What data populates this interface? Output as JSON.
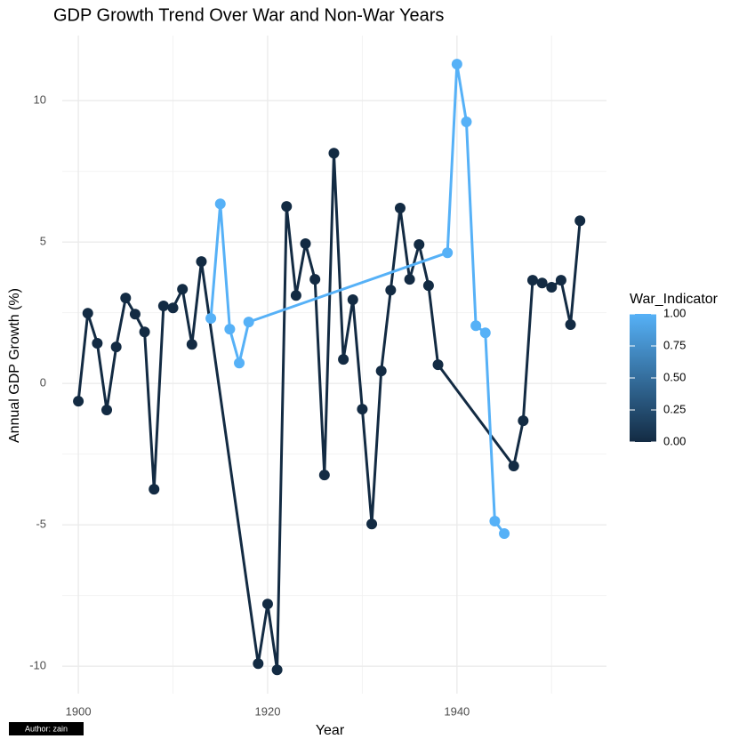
{
  "chart_data": {
    "type": "line",
    "title": "GDP Growth Trend Over War and Non-War Years",
    "x_label": "Year",
    "y_label": "Annual GDP Growth (%)",
    "caption": "Author: zain",
    "xlim": [
      1898.3,
      1955.8
    ],
    "ylim": [
      -10.97,
      12.3
    ],
    "xticks": [
      1900,
      1920,
      1940
    ],
    "yticks": [
      -10,
      -5,
      0,
      5,
      10
    ],
    "grid": true,
    "series": [
      {
        "color": "#132B43",
        "x": [
          1900,
          1901,
          1902,
          1903,
          1904,
          1905,
          1906,
          1907,
          1908,
          1909,
          1910,
          1911,
          1912,
          1913,
          1919,
          1920,
          1921,
          1922,
          1923,
          1924,
          1925,
          1926,
          1927,
          1928,
          1929,
          1930,
          1931,
          1932,
          1933,
          1934,
          1935,
          1936,
          1937,
          1938,
          1946,
          1947,
          1948,
          1949,
          1950,
          1951,
          1952,
          1953
        ],
        "values": [
          -0.63,
          2.48,
          1.42,
          -0.94,
          1.29,
          3.02,
          2.45,
          1.82,
          -3.74,
          2.74,
          2.67,
          3.33,
          1.38,
          4.31,
          -9.91,
          -7.8,
          -10.13,
          6.26,
          3.11,
          4.94,
          3.68,
          -3.24,
          8.14,
          0.85,
          2.96,
          -0.91,
          -4.97,
          0.44,
          3.3,
          6.2,
          3.68,
          4.91,
          3.46,
          0.66,
          -2.92,
          -1.32,
          3.65,
          3.55,
          3.4,
          3.65,
          2.08,
          5.75
        ]
      },
      {
        "color": "#56B1F7",
        "x": [
          1914,
          1915,
          1916,
          1917,
          1918,
          1939,
          1940,
          1941,
          1942,
          1943,
          1944,
          1945
        ],
        "values": [
          2.3,
          6.35,
          1.92,
          0.72,
          2.17,
          4.62,
          11.29,
          9.25,
          2.04,
          1.79,
          -4.87,
          -5.31
        ]
      }
    ],
    "legend": {
      "title": "War_Indicator",
      "position": "right",
      "colors": [
        "#132B43",
        "#56B1F7"
      ],
      "lim": [
        0,
        1
      ],
      "ticks": [
        {
          "value": 0,
          "label": "0.00"
        },
        {
          "value": 0.25,
          "label": "0.25"
        },
        {
          "value": 0.5,
          "label": "0.50"
        },
        {
          "value": 0.75,
          "label": "0.75"
        },
        {
          "value": 1,
          "label": "1.00"
        }
      ]
    }
  }
}
